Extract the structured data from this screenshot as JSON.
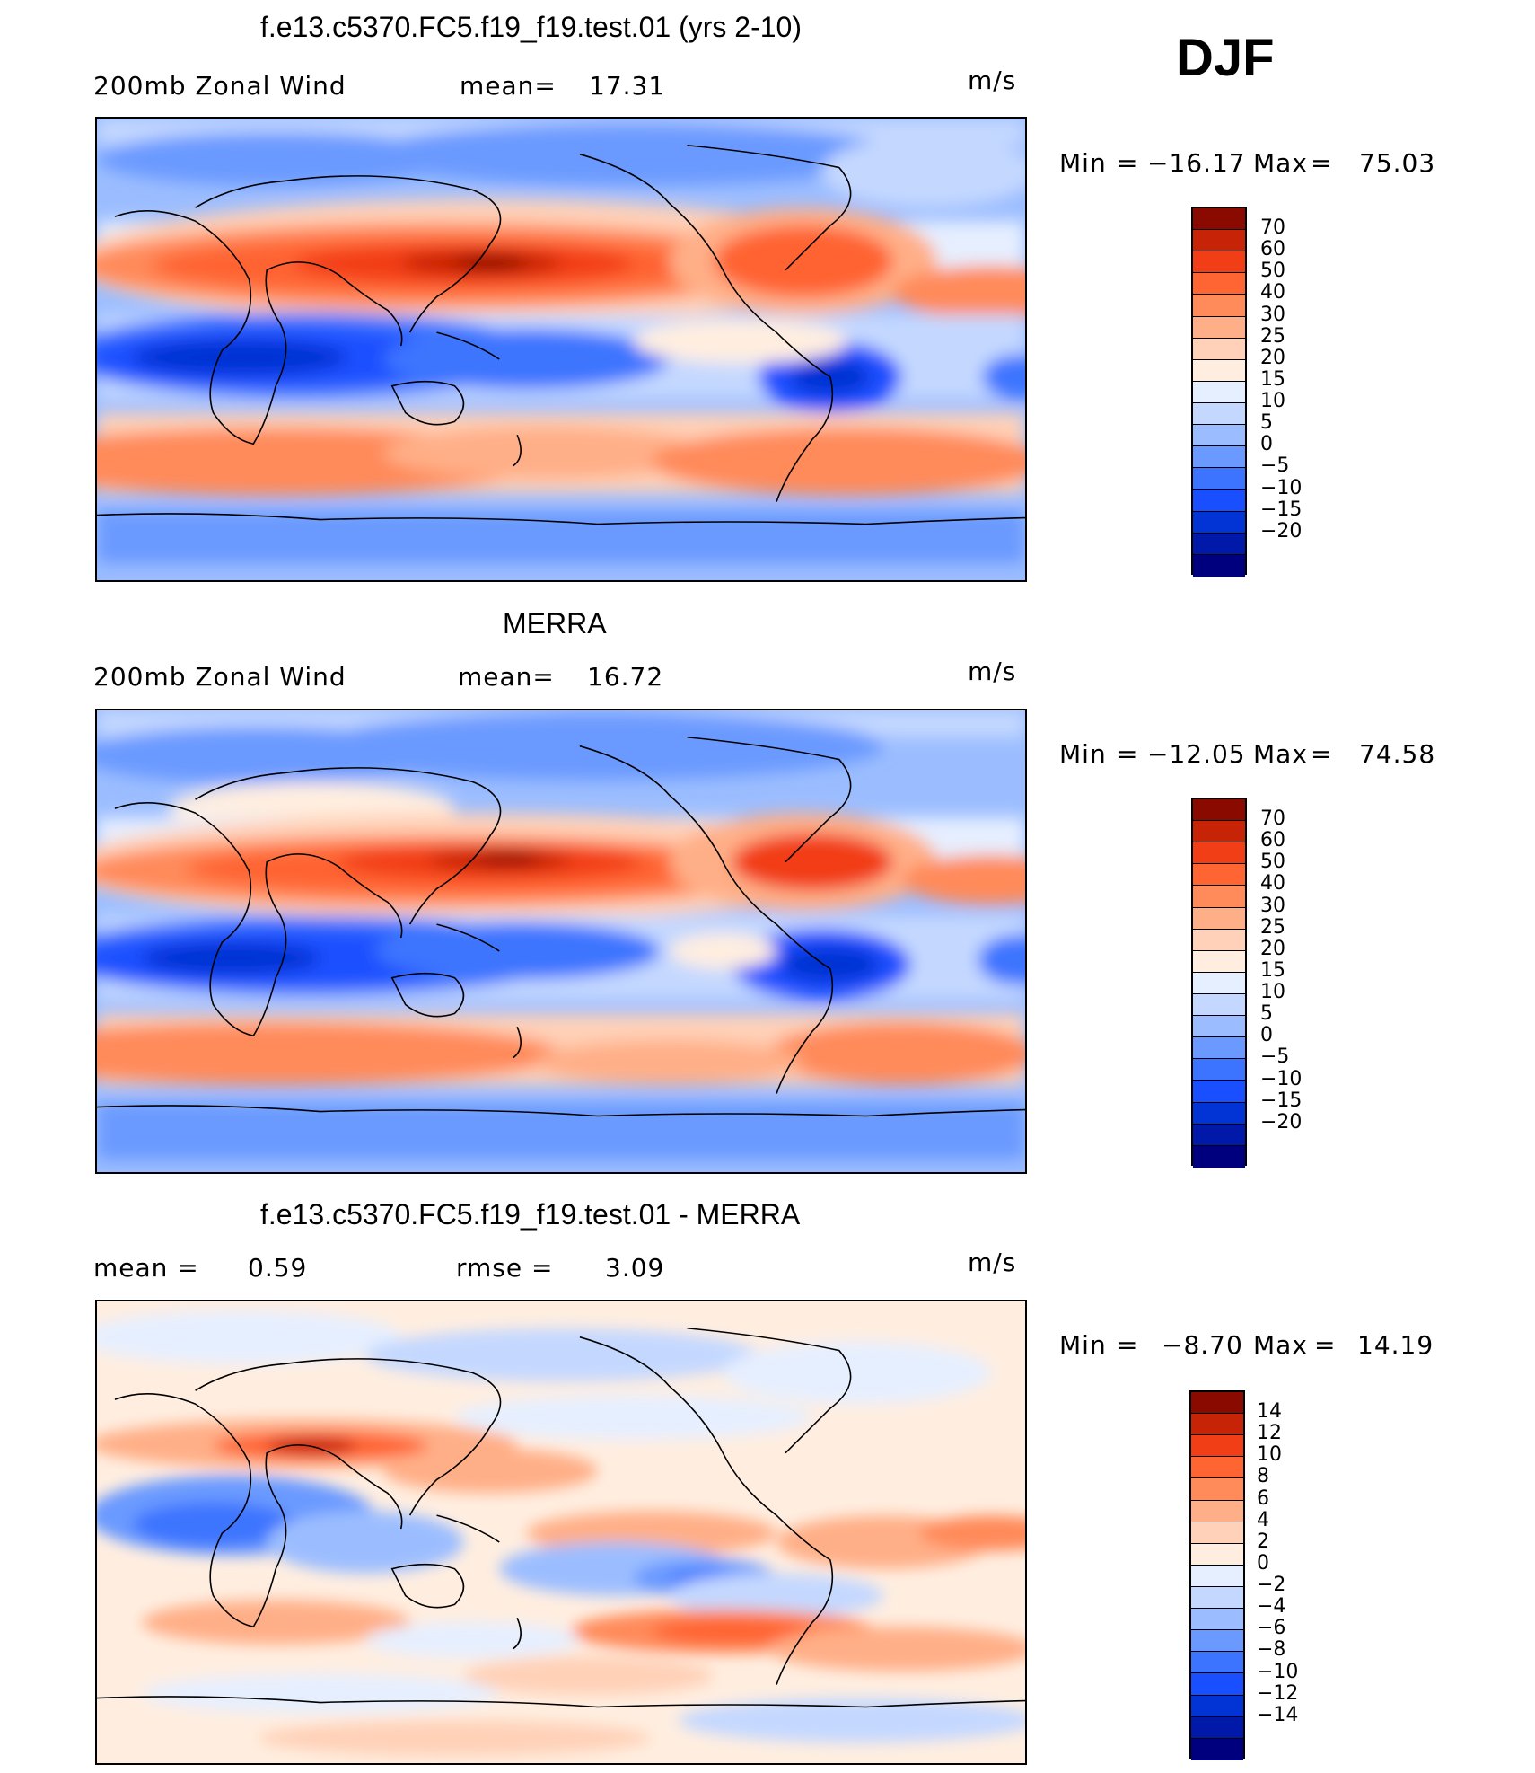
{
  "season": "DJF",
  "units": "m/s",
  "colors": {
    "wind_scale": [
      "#00007f",
      "#0019a8",
      "#0233d4",
      "#1a4fff",
      "#3d74ff",
      "#6a9aff",
      "#9bbdff",
      "#c4d8ff",
      "#e6efff",
      "#ffeee0",
      "#ffd1b8",
      "#ffaf87",
      "#ff8a5a",
      "#ff6433",
      "#f23e17",
      "#c72306",
      "#8a0a00"
    ],
    "diff_scale": [
      "#00007f",
      "#0019a8",
      "#0233d4",
      "#1a4fff",
      "#3d74ff",
      "#6a9aff",
      "#9bbdff",
      "#c4d8ff",
      "#e6efff",
      "#ffeee0",
      "#ffd1b8",
      "#ffaf87",
      "#ff8a5a",
      "#ff6433",
      "#f23e17",
      "#c72306",
      "#8a0a00"
    ],
    "coast": "#000000"
  },
  "panels": [
    {
      "title": "f.e13.c5370.FC5.f19_f19.test.01 (yrs 2-10)",
      "left_label": "200mb Zonal Wind",
      "stat_label": "mean=",
      "stat_value": "17.31",
      "units": "m/s",
      "min_label": "Min",
      "min_eq": "=",
      "min_value": "−16.17",
      "max_label": "Max",
      "max_eq": "=",
      "max_value": "75.03"
    },
    {
      "title": "MERRA",
      "left_label": "200mb Zonal Wind",
      "stat_label": "mean=",
      "stat_value": "16.72",
      "units": "m/s",
      "min_label": "Min",
      "min_eq": "=",
      "min_value": "−12.05",
      "max_label": "Max",
      "max_eq": "=",
      "max_value": "74.58"
    },
    {
      "title": "f.e13.c5370.FC5.f19_f19.test.01 - MERRA",
      "left_label": "mean =",
      "left_value": "0.59",
      "stat_label": "rmse =",
      "stat_value": "3.09",
      "units": "m/s",
      "min_label": "Min",
      "min_eq": "=",
      "min_value": "−8.70",
      "max_label": "Max",
      "max_eq": "=",
      "max_value": "14.19"
    }
  ],
  "wind_levels": [
    "70",
    "60",
    "50",
    "40",
    "30",
    "25",
    "20",
    "15",
    "10",
    "5",
    "0",
    "−5",
    "−10",
    "−15",
    "−20"
  ],
  "diff_levels": [
    "14",
    "12",
    "10",
    "8",
    "6",
    "4",
    "2",
    "0",
    "−2",
    "−4",
    "−6",
    "−8",
    "−10",
    "−12",
    "−14"
  ]
}
